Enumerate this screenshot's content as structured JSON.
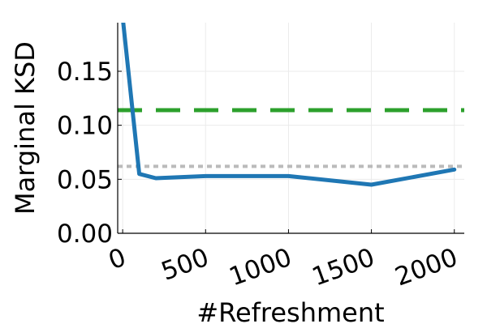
{
  "chart_data": {
    "type": "line",
    "title": "",
    "xlabel": "#Refreshment",
    "ylabel": "Marginal KSD",
    "xlim": [
      -30,
      2060
    ],
    "ylim": [
      0,
      0.195
    ],
    "x_ticks": [
      0,
      500,
      1000,
      1500,
      2000
    ],
    "x_tick_labels": [
      "0",
      "500",
      "1000",
      "1500",
      "2000"
    ],
    "y_ticks": [
      0,
      0.05,
      0.1,
      0.15
    ],
    "y_tick_labels": [
      "0.00",
      "0.05",
      "0.10",
      "0.15"
    ],
    "grid": true,
    "series": [
      {
        "style": "solid",
        "color": "#1f77b4",
        "x": [
          0,
          100,
          200,
          500,
          1000,
          1500,
          2000
        ],
        "y": [
          0.2,
          0.055,
          0.051,
          0.053,
          0.053,
          0.045,
          0.059
        ]
      }
    ],
    "reference_lines": [
      {
        "style": "dashed",
        "color": "#2ca02c",
        "y": 0.114
      },
      {
        "style": "dotted",
        "color": "#bbbbbb",
        "y": 0.062
      }
    ]
  }
}
